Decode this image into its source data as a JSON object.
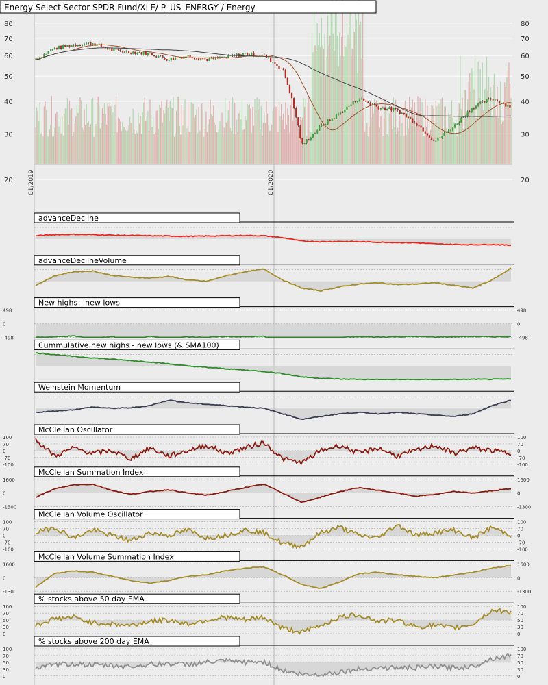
{
  "chart_data": [
    {
      "type": "candlestick+volume",
      "title": "Energy Select Sector SPDR Fund/XLE/ P_US_ENERGY / Energy",
      "y_ticks": [
        20,
        30,
        40,
        50,
        60,
        70,
        80
      ],
      "y_scale": "log",
      "ylim": [
        20,
        87
      ],
      "x_ticks": [
        "01/2019",
        "01/2020"
      ],
      "price": [
        {
          "date": "2019-01",
          "close": 58
        },
        {
          "date": "2019-02",
          "close": 64
        },
        {
          "date": "2019-03",
          "close": 66
        },
        {
          "date": "2019-04",
          "close": 67
        },
        {
          "date": "2019-05",
          "close": 63
        },
        {
          "date": "2019-06",
          "close": 62
        },
        {
          "date": "2019-07",
          "close": 61
        },
        {
          "date": "2019-08",
          "close": 58
        },
        {
          "date": "2019-09",
          "close": 60
        },
        {
          "date": "2019-10",
          "close": 58
        },
        {
          "date": "2019-11",
          "close": 59
        },
        {
          "date": "2019-12",
          "close": 61
        },
        {
          "date": "2020-01",
          "close": 60
        },
        {
          "date": "2020-02",
          "close": 53
        },
        {
          "date": "2020-03",
          "close": 27
        },
        {
          "date": "2020-04",
          "close": 32
        },
        {
          "date": "2020-05",
          "close": 36
        },
        {
          "date": "2020-06",
          "close": 41
        },
        {
          "date": "2020-07",
          "close": 38
        },
        {
          "date": "2020-08",
          "close": 37
        },
        {
          "date": "2020-09",
          "close": 33
        },
        {
          "date": "2020-10",
          "close": 28
        },
        {
          "date": "2020-11",
          "close": 32
        },
        {
          "date": "2020-12",
          "close": 38
        },
        {
          "date": "2021-01",
          "close": 41
        },
        {
          "date": "2021-02",
          "close": 38
        }
      ]
    },
    {
      "type": "line",
      "title": "advanceDecline",
      "color": "#e8281e",
      "values": [
        0.62,
        0.66,
        0.67,
        0.66,
        0.64,
        0.63,
        0.62,
        0.61,
        0.6,
        0.61,
        0.62,
        0.63,
        0.62,
        0.55,
        0.42,
        0.4,
        0.41,
        0.4,
        0.38,
        0.37,
        0.36,
        0.32,
        0.3,
        0.29,
        0.3,
        0.27
      ]
    },
    {
      "type": "line",
      "title": "advanceDeclineVolume",
      "color": "#a58c2a",
      "values": [
        0.35,
        0.7,
        0.85,
        0.88,
        0.72,
        0.65,
        0.62,
        0.68,
        0.55,
        0.5,
        0.7,
        0.85,
        0.95,
        0.55,
        0.25,
        0.15,
        0.3,
        0.4,
        0.45,
        0.38,
        0.4,
        0.45,
        0.35,
        0.25,
        0.55,
        0.98
      ]
    },
    {
      "type": "line",
      "title": "New highs - new lows",
      "color": "#2e8b2a",
      "y_ticks": [
        "498",
        "0",
        "-498"
      ],
      "values": [
        0,
        0.02,
        0.05,
        -0.05,
        0.03,
        -0.1,
        0.04,
        -0.05,
        0.02,
        0,
        0.03,
        0.02,
        0.04,
        -0.3,
        -0.85,
        -0.4,
        0,
        0.02,
        0.01,
        0.02,
        0.03,
        0.01,
        0.02,
        0.03,
        0.02,
        0.03
      ]
    },
    {
      "type": "line",
      "title": "Cummulative new highs - new lows (& SMA100)",
      "color": "#2e8b2a",
      "values": [
        0.98,
        0.92,
        0.85,
        0.8,
        0.75,
        0.7,
        0.65,
        0.58,
        0.5,
        0.45,
        0.4,
        0.35,
        0.3,
        0.22,
        0.1,
        0.05,
        0.02,
        0.01,
        0.0,
        0.0,
        0.0,
        0.0,
        0.0,
        0.01,
        0.01,
        0.02
      ]
    },
    {
      "type": "line",
      "title": "Weinstein Momentum",
      "color": "#3a3e52",
      "values": [
        0.35,
        0.4,
        0.45,
        0.55,
        0.5,
        0.52,
        0.6,
        0.8,
        0.7,
        0.65,
        0.6,
        0.55,
        0.5,
        0.3,
        0.1,
        0.2,
        0.3,
        0.35,
        0.3,
        0.35,
        0.3,
        0.25,
        0.2,
        0.3,
        0.6,
        0.8
      ]
    },
    {
      "type": "line",
      "title": "McClellan Oscillator",
      "color": "#8b1a10",
      "y_ticks": [
        "100",
        "70",
        "0",
        "-70",
        "-100"
      ],
      "values": [
        0.9,
        0.3,
        0.6,
        0.4,
        0.5,
        0.2,
        0.6,
        0.3,
        0.5,
        0.7,
        0.4,
        0.6,
        0.8,
        0.2,
        0.05,
        0.5,
        0.7,
        0.4,
        0.6,
        0.3,
        0.5,
        0.7,
        0.4,
        0.6,
        0.5,
        0.4
      ]
    },
    {
      "type": "line",
      "title": "McClellan Summation Index",
      "color": "#8b1a10",
      "y_ticks": [
        "1600",
        "0",
        "-1300"
      ],
      "values": [
        0.35,
        0.65,
        0.8,
        0.82,
        0.6,
        0.45,
        0.55,
        0.62,
        0.5,
        0.42,
        0.55,
        0.7,
        0.82,
        0.5,
        0.15,
        0.35,
        0.55,
        0.7,
        0.6,
        0.5,
        0.38,
        0.45,
        0.55,
        0.5,
        0.58,
        0.66
      ]
    },
    {
      "type": "line",
      "title": "McClellan Volume Oscillator",
      "color": "#a58c2a",
      "y_ticks": [
        "100",
        "70",
        "0",
        "-70",
        "-100"
      ],
      "values": [
        0.6,
        0.8,
        0.4,
        0.7,
        0.5,
        0.3,
        0.6,
        0.5,
        0.7,
        0.4,
        0.5,
        0.7,
        0.6,
        0.2,
        0.1,
        0.6,
        0.8,
        0.5,
        0.4,
        0.9,
        0.5,
        0.6,
        0.7,
        0.4,
        0.8,
        0.5
      ]
    },
    {
      "type": "line",
      "title": "McClellan Volume Summation Index",
      "color": "#a58c2a",
      "y_ticks": [
        "1600",
        "0",
        "-1300"
      ],
      "values": [
        0.15,
        0.65,
        0.75,
        0.7,
        0.55,
        0.4,
        0.3,
        0.4,
        0.55,
        0.6,
        0.75,
        0.85,
        0.9,
        0.6,
        0.25,
        0.1,
        0.35,
        0.65,
        0.7,
        0.6,
        0.55,
        0.5,
        0.6,
        0.7,
        0.85,
        0.95
      ]
    },
    {
      "type": "line",
      "title": "% stocks above 50 day EMA",
      "color": "#a58c2a",
      "y_ticks": [
        "100",
        "70",
        "50",
        "30",
        "0"
      ],
      "values": [
        0.3,
        0.55,
        0.6,
        0.4,
        0.35,
        0.3,
        0.45,
        0.5,
        0.35,
        0.5,
        0.6,
        0.5,
        0.6,
        0.2,
        0.05,
        0.3,
        0.6,
        0.7,
        0.45,
        0.5,
        0.25,
        0.3,
        0.2,
        0.35,
        0.85,
        0.8
      ]
    },
    {
      "type": "line",
      "title": "% stocks above 200 day EMA",
      "color": "#909090",
      "y_ticks": [
        "100",
        "70",
        "50",
        "30",
        "0"
      ],
      "values": [
        0.3,
        0.4,
        0.45,
        0.4,
        0.38,
        0.35,
        0.42,
        0.45,
        0.42,
        0.5,
        0.55,
        0.5,
        0.52,
        0.2,
        0.05,
        0.05,
        0.15,
        0.25,
        0.3,
        0.3,
        0.3,
        0.35,
        0.3,
        0.35,
        0.65,
        0.75
      ]
    }
  ]
}
